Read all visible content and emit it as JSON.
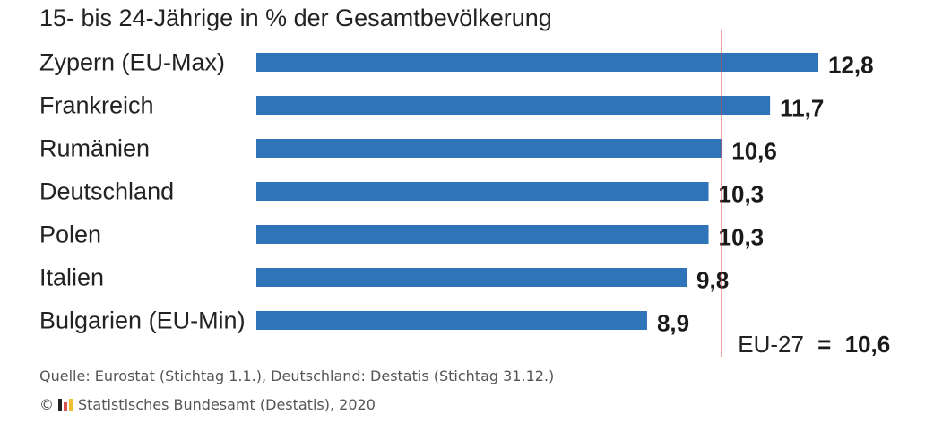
{
  "chart_data": {
    "type": "bar",
    "orientation": "horizontal",
    "title": "15- bis 24-Jährige in % der Gesamtbevölkerung",
    "categories": [
      "Zypern (EU-Max)",
      "Frankreich",
      "Rumänien",
      "Deutschland",
      "Polen",
      "Italien",
      "Bulgarien (EU-Min)"
    ],
    "values": [
      12.8,
      11.7,
      10.6,
      10.3,
      10.3,
      9.8,
      8.9
    ],
    "value_labels": [
      "12,8",
      "11,7",
      "10,6",
      "10,3",
      "10,3",
      "9,8",
      "8,9"
    ],
    "reference_line": {
      "label": "EU-27",
      "separator": "=",
      "value": 10.6,
      "value_label": "10,6"
    },
    "xlim": [
      0,
      12.8
    ],
    "grid": false,
    "colors": {
      "bar": "#2f73b8",
      "reference_line": "#d9534f"
    }
  },
  "footer": {
    "source": "Quelle: Eurostat (Stichtag 1.1.), Deutschland: Destatis (Stichtag 31.12.)",
    "copyright_symbol": "©",
    "copyright_text": "Statistisches Bundesamt (Destatis), 2020",
    "logo_icon": "destatis-logo-icon",
    "logo_colors": [
      "#222222",
      "#d9534f",
      "#f0c030"
    ]
  }
}
